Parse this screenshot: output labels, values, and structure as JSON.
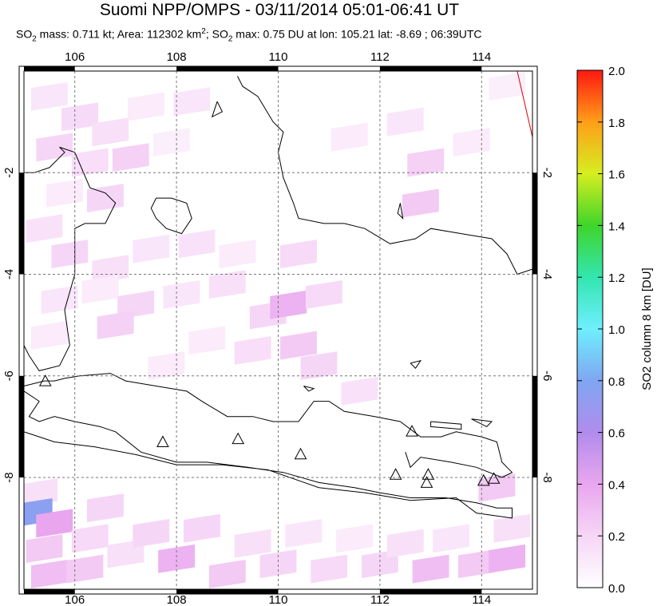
{
  "title": "Suomi NPP/OMPS - 03/11/2014 05:01-06:41 UT",
  "subtitle": {
    "p1": "SO",
    "p1sub": "2",
    "p2": " mass: 0.711 kt; Area: 112302 km",
    "p2sup": "2",
    "p3": "; SO",
    "p3sub": "2",
    "p4": " max: 0.75 DU at lon: 105.21 lat: -8.69 ; 06:39UTC"
  },
  "chart_data": {
    "type": "heatmap",
    "title": "Suomi NPP/OMPS - 03/11/2014 05:01-06:41 UT",
    "stats": {
      "so2_mass_kt": 0.711,
      "area_km2": 112302,
      "so2_max_du": 0.75,
      "max_lon": 105.21,
      "max_lat": -8.69,
      "max_time": "06:39UTC"
    },
    "xlim": [
      105,
      115
    ],
    "ylim": [
      -10.2,
      0
    ],
    "x_ticks": [
      106,
      108,
      110,
      112,
      114
    ],
    "x_tick_labels": [
      "106",
      "108",
      "110",
      "112",
      "114"
    ],
    "y_ticks": [
      -2,
      -4,
      -6,
      -8
    ],
    "y_tick_labels": [
      "-2",
      "-4",
      "-6",
      "-8"
    ],
    "grid": true,
    "colorbar": {
      "label": "SO2 column 8 km [DU]",
      "range": [
        0,
        2
      ],
      "ticks": [
        0.0,
        0.2,
        0.4,
        0.6,
        0.8,
        1.0,
        1.2,
        1.4,
        1.6,
        1.8,
        2.0
      ],
      "tick_labels": [
        "0.0",
        "0.2",
        "0.4",
        "0.6",
        "0.8",
        "1.0",
        "1.2",
        "1.4",
        "1.6",
        "1.8",
        "2.0"
      ]
    },
    "cells": [
      {
        "lon": 105.5,
        "lat": -0.5,
        "so2": 0.12
      },
      {
        "lon": 106.1,
        "lat": -0.9,
        "so2": 0.18
      },
      {
        "lon": 106.7,
        "lat": -1.2,
        "so2": 0.15
      },
      {
        "lon": 107.4,
        "lat": -0.7,
        "so2": 0.1
      },
      {
        "lon": 108.3,
        "lat": -0.6,
        "so2": 0.12
      },
      {
        "lon": 105.6,
        "lat": -1.5,
        "so2": 0.2
      },
      {
        "lon": 106.3,
        "lat": -1.8,
        "so2": 0.16
      },
      {
        "lon": 107.1,
        "lat": -1.7,
        "so2": 0.22
      },
      {
        "lon": 107.9,
        "lat": -1.4,
        "so2": 0.08
      },
      {
        "lon": 105.8,
        "lat": -2.4,
        "so2": 0.1
      },
      {
        "lon": 106.6,
        "lat": -2.5,
        "so2": 0.2
      },
      {
        "lon": 105.4,
        "lat": -3.1,
        "so2": 0.14
      },
      {
        "lon": 105.9,
        "lat": -3.6,
        "so2": 0.2
      },
      {
        "lon": 106.7,
        "lat": -3.9,
        "so2": 0.15
      },
      {
        "lon": 107.5,
        "lat": -3.5,
        "so2": 0.12
      },
      {
        "lon": 108.4,
        "lat": -3.4,
        "so2": 0.14
      },
      {
        "lon": 109.2,
        "lat": -3.6,
        "so2": 0.1
      },
      {
        "lon": 110.4,
        "lat": -3.6,
        "so2": 0.18
      },
      {
        "lon": 105.7,
        "lat": -4.5,
        "so2": 0.12
      },
      {
        "lon": 106.5,
        "lat": -4.3,
        "so2": 0.1
      },
      {
        "lon": 107.2,
        "lat": -4.6,
        "so2": 0.2
      },
      {
        "lon": 108.1,
        "lat": -4.4,
        "so2": 0.12
      },
      {
        "lon": 109.0,
        "lat": -4.2,
        "so2": 0.15
      },
      {
        "lon": 109.8,
        "lat": -4.8,
        "so2": 0.2
      },
      {
        "lon": 110.2,
        "lat": -4.6,
        "so2": 0.35
      },
      {
        "lon": 110.9,
        "lat": -4.4,
        "so2": 0.18
      },
      {
        "lon": 105.5,
        "lat": -5.2,
        "so2": 0.1
      },
      {
        "lon": 106.8,
        "lat": -5.0,
        "so2": 0.22
      },
      {
        "lon": 108.6,
        "lat": -5.3,
        "so2": 0.1
      },
      {
        "lon": 109.5,
        "lat": -5.5,
        "so2": 0.16
      },
      {
        "lon": 110.4,
        "lat": -5.4,
        "so2": 0.25
      },
      {
        "lon": 110.8,
        "lat": -5.8,
        "so2": 0.2
      },
      {
        "lon": 111.6,
        "lat": -6.3,
        "so2": 0.14
      },
      {
        "lon": 107.8,
        "lat": -5.8,
        "so2": 0.1
      },
      {
        "lon": 111.4,
        "lat": -1.3,
        "so2": 0.1
      },
      {
        "lon": 112.5,
        "lat": -1.0,
        "so2": 0.12
      },
      {
        "lon": 112.9,
        "lat": -1.8,
        "so2": 0.22
      },
      {
        "lon": 113.8,
        "lat": -1.4,
        "so2": 0.1
      },
      {
        "lon": 112.8,
        "lat": -2.6,
        "so2": 0.25
      },
      {
        "lon": 114.5,
        "lat": -0.3,
        "so2": 0.08
      },
      {
        "lon": 105.3,
        "lat": -8.3,
        "so2": 0.15
      },
      {
        "lon": 105.2,
        "lat": -8.69,
        "so2": 0.75
      },
      {
        "lon": 105.6,
        "lat": -8.9,
        "so2": 0.4
      },
      {
        "lon": 105.4,
        "lat": -9.4,
        "so2": 0.25
      },
      {
        "lon": 105.5,
        "lat": -9.9,
        "so2": 0.3
      },
      {
        "lon": 106.3,
        "lat": -9.2,
        "so2": 0.18
      },
      {
        "lon": 106.6,
        "lat": -8.6,
        "so2": 0.2
      },
      {
        "lon": 106.2,
        "lat": -9.8,
        "so2": 0.25
      },
      {
        "lon": 107.0,
        "lat": -9.5,
        "so2": 0.15
      },
      {
        "lon": 107.5,
        "lat": -9.1,
        "so2": 0.2
      },
      {
        "lon": 108.0,
        "lat": -9.6,
        "so2": 0.35
      },
      {
        "lon": 108.5,
        "lat": -9.0,
        "so2": 0.2
      },
      {
        "lon": 109.0,
        "lat": -9.9,
        "so2": 0.25
      },
      {
        "lon": 109.5,
        "lat": -9.3,
        "so2": 0.15
      },
      {
        "lon": 110.0,
        "lat": -9.7,
        "so2": 0.2
      },
      {
        "lon": 110.5,
        "lat": -9.1,
        "so2": 0.12
      },
      {
        "lon": 111.0,
        "lat": -9.8,
        "so2": 0.18
      },
      {
        "lon": 111.5,
        "lat": -9.2,
        "so2": 0.1
      },
      {
        "lon": 112.0,
        "lat": -9.7,
        "so2": 0.2
      },
      {
        "lon": 112.5,
        "lat": -9.3,
        "so2": 0.15
      },
      {
        "lon": 113.0,
        "lat": -9.8,
        "so2": 0.3
      },
      {
        "lon": 113.4,
        "lat": -9.2,
        "so2": 0.12
      },
      {
        "lon": 113.9,
        "lat": -9.7,
        "so2": 0.25
      },
      {
        "lon": 114.5,
        "lat": -9.6,
        "so2": 0.35
      },
      {
        "lon": 114.3,
        "lat": -8.2,
        "so2": 0.25
      },
      {
        "lon": 114.6,
        "lat": -9.0,
        "so2": 0.15
      }
    ],
    "volcanoes": [
      {
        "lon": 105.42,
        "lat": -6.1
      },
      {
        "lon": 107.73,
        "lat": -7.3
      },
      {
        "lon": 109.21,
        "lat": -7.24
      },
      {
        "lon": 110.44,
        "lat": -7.54
      },
      {
        "lon": 112.31,
        "lat": -7.94
      },
      {
        "lon": 112.95,
        "lat": -7.94
      },
      {
        "lon": 112.92,
        "lat": -8.1
      },
      {
        "lon": 114.04,
        "lat": -8.06
      },
      {
        "lon": 114.24,
        "lat": -8.02
      },
      {
        "lon": 112.63,
        "lat": -7.09
      }
    ],
    "lines": [
      {
        "name": "",
        "points": [
          [
            114.7,
            0
          ],
          [
            115.0,
            -1.3
          ]
        ]
      }
    ],
    "coastlines": [
      [
        [
          105.0,
          -2.0
        ],
        [
          105.2,
          -2.0
        ],
        [
          105.5,
          -1.9
        ],
        [
          105.8,
          -1.6
        ],
        [
          105.7,
          -1.5
        ],
        [
          106.0,
          -1.6
        ],
        [
          106.3,
          -2.3
        ],
        [
          106.6,
          -2.4
        ],
        [
          106.8,
          -2.6
        ],
        [
          106.6,
          -3.0
        ],
        [
          106.2,
          -3.0
        ],
        [
          106.0,
          -3.1
        ],
        [
          106.0,
          -4.0
        ],
        [
          105.8,
          -4.7
        ],
        [
          105.9,
          -5.4
        ],
        [
          105.7,
          -5.8
        ],
        [
          105.3,
          -5.9
        ],
        [
          105.1,
          -5.6
        ],
        [
          105.0,
          -5.4
        ]
      ],
      [
        [
          105.0,
          -6.3
        ],
        [
          105.3,
          -6.5
        ],
        [
          105.1,
          -6.8
        ],
        [
          105.3,
          -6.9
        ],
        [
          105.6,
          -6.8
        ],
        [
          106.0,
          -6.9
        ],
        [
          106.5,
          -7.0
        ],
        [
          106.8,
          -7.1
        ],
        [
          107.3,
          -7.5
        ],
        [
          108.0,
          -7.7
        ],
        [
          108.6,
          -7.7
        ],
        [
          109.4,
          -7.8
        ],
        [
          110.1,
          -7.9
        ],
        [
          110.8,
          -8.1
        ],
        [
          111.5,
          -8.2
        ],
        [
          112.0,
          -8.3
        ],
        [
          112.6,
          -8.4
        ],
        [
          113.3,
          -8.4
        ],
        [
          113.9,
          -8.5
        ],
        [
          114.3,
          -8.6
        ],
        [
          114.6,
          -8.6
        ],
        [
          114.6,
          -8.8
        ],
        [
          113.9,
          -8.7
        ],
        [
          113.5,
          -8.4
        ],
        [
          112.6,
          -8.45
        ],
        [
          111.7,
          -8.3
        ],
        [
          110.8,
          -8.2
        ],
        [
          109.8,
          -7.85
        ],
        [
          108.9,
          -7.75
        ],
        [
          108.0,
          -7.75
        ],
        [
          107.2,
          -7.55
        ],
        [
          106.4,
          -7.4
        ],
        [
          105.6,
          -7.3
        ],
        [
          105.3,
          -7.2
        ],
        [
          105.0,
          -7.1
        ]
      ],
      [
        [
          105.0,
          -6.2
        ],
        [
          105.4,
          -6.1
        ],
        [
          105.6,
          -6.1
        ],
        [
          105.8,
          -6.05
        ],
        [
          106.1,
          -6.0
        ],
        [
          106.7,
          -5.95
        ],
        [
          107.0,
          -6.1
        ],
        [
          107.6,
          -6.2
        ],
        [
          108.2,
          -6.3
        ],
        [
          108.5,
          -6.5
        ],
        [
          109.0,
          -6.8
        ],
        [
          109.5,
          -6.8
        ],
        [
          109.9,
          -6.9
        ],
        [
          110.4,
          -6.9
        ],
        [
          110.7,
          -6.5
        ],
        [
          111.0,
          -6.5
        ],
        [
          111.3,
          -6.7
        ],
        [
          111.9,
          -6.8
        ],
        [
          112.4,
          -6.9
        ],
        [
          112.8,
          -7.2
        ],
        [
          113.2,
          -7.2
        ],
        [
          113.5,
          -7.1
        ],
        [
          114.0,
          -7.2
        ],
        [
          114.3,
          -7.3
        ],
        [
          114.4,
          -7.7
        ],
        [
          114.6,
          -7.9
        ],
        [
          114.4,
          -8.0
        ],
        [
          113.9,
          -7.8
        ],
        [
          113.4,
          -7.7
        ],
        [
          112.8,
          -7.6
        ],
        [
          112.7,
          -7.7
        ],
        [
          112.6,
          -7.8
        ],
        [
          112.5,
          -7.5
        ]
      ],
      [
        [
          115.0,
          -3.9
        ],
        [
          114.7,
          -4.0
        ],
        [
          114.5,
          -3.6
        ],
        [
          114.2,
          -3.3
        ],
        [
          113.6,
          -3.2
        ],
        [
          113.0,
          -3.1
        ],
        [
          112.7,
          -3.3
        ],
        [
          112.2,
          -3.4
        ],
        [
          111.7,
          -3.1
        ],
        [
          111.3,
          -3.0
        ],
        [
          110.9,
          -3.0
        ],
        [
          110.4,
          -2.9
        ],
        [
          110.3,
          -2.6
        ],
        [
          110.1,
          -2.1
        ],
        [
          110.0,
          -1.6
        ],
        [
          110.1,
          -1.2
        ],
        [
          109.9,
          -1.0
        ],
        [
          109.6,
          -0.5
        ],
        [
          109.3,
          -0.3
        ],
        [
          109.2,
          -0.1
        ]
      ]
    ],
    "islands": [
      [
        [
          107.6,
          -2.5
        ],
        [
          107.9,
          -2.5
        ],
        [
          108.2,
          -2.6
        ],
        [
          108.3,
          -2.9
        ],
        [
          108.1,
          -3.2
        ],
        [
          107.8,
          -3.1
        ],
        [
          107.6,
          -2.9
        ],
        [
          107.5,
          -2.7
        ],
        [
          107.6,
          -2.5
        ]
      ],
      [
        [
          110.5,
          -6.2
        ],
        [
          110.7,
          -6.25
        ],
        [
          110.6,
          -6.3
        ],
        [
          110.5,
          -6.2
        ]
      ],
      [
        [
          112.6,
          -5.75
        ],
        [
          112.8,
          -5.7
        ],
        [
          112.7,
          -5.85
        ],
        [
          112.6,
          -5.75
        ]
      ],
      [
        [
          113.0,
          -6.9
        ],
        [
          113.6,
          -6.95
        ],
        [
          113.6,
          -7.05
        ],
        [
          113.0,
          -7.0
        ],
        [
          113.0,
          -6.9
        ]
      ],
      [
        [
          113.8,
          -6.85
        ],
        [
          114.2,
          -6.9
        ],
        [
          114.1,
          -7.0
        ],
        [
          113.8,
          -6.85
        ]
      ],
      [
        [
          108.8,
          -0.6
        ],
        [
          108.9,
          -0.8
        ],
        [
          108.7,
          -0.9
        ],
        [
          108.8,
          -0.6
        ]
      ],
      [
        [
          112.4,
          -2.6
        ],
        [
          112.45,
          -2.9
        ],
        [
          112.35,
          -2.8
        ],
        [
          112.4,
          -2.6
        ]
      ]
    ]
  }
}
